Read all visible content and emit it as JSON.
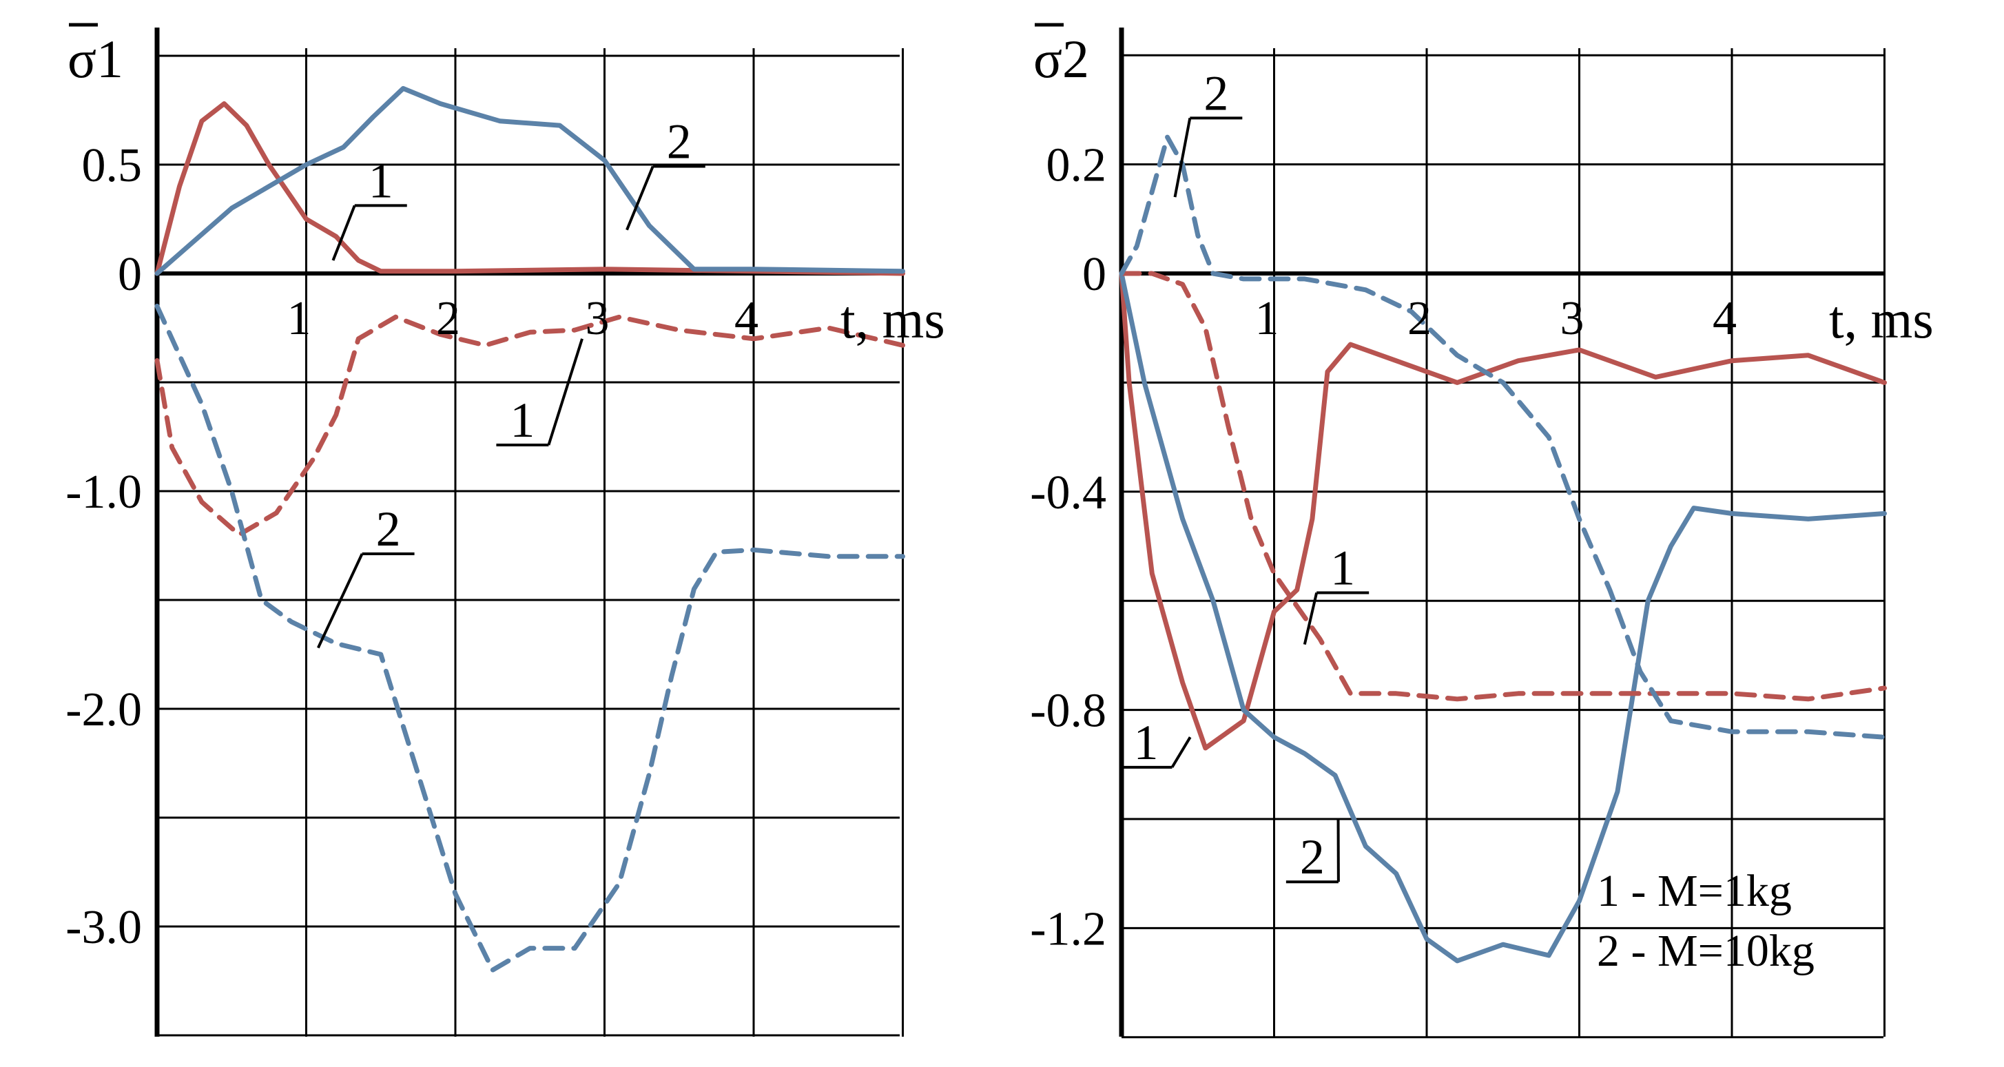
{
  "chart_data": [
    {
      "type": "line",
      "ylabel": "σ1",
      "xlabel": "t, ms",
      "xlim": [
        0,
        5
      ],
      "ylim": [
        -3.5,
        1.0
      ],
      "grid": true,
      "x_ticks": [
        {
          "value": 1,
          "label": "1"
        },
        {
          "value": 2,
          "label": "2"
        },
        {
          "value": 3,
          "label": "3"
        },
        {
          "value": 4,
          "label": "4"
        }
      ],
      "y_ticks": [
        {
          "value": 0.5,
          "label": "0.5"
        },
        {
          "value": 0,
          "label": "0"
        },
        {
          "value": -1.0,
          "label": "-1.0"
        },
        {
          "value": -2.0,
          "label": "-2.0"
        },
        {
          "value": -3.0,
          "label": "-3.0"
        }
      ],
      "y_grid": [
        1.0,
        0.5,
        0,
        -0.5,
        -1.0,
        -1.5,
        -2.0,
        -2.5,
        -3.0,
        -3.5
      ],
      "series": [
        {
          "id": "s1-solid-1",
          "curve": "1",
          "style": "solid",
          "color": "#b85450",
          "x": [
            0,
            0.15,
            0.3,
            0.45,
            0.6,
            0.75,
            0.9,
            1.0,
            1.2,
            1.35,
            1.5,
            2.0,
            3.0,
            4.0,
            5.0
          ],
          "y": [
            0,
            0.4,
            0.7,
            0.78,
            0.68,
            0.5,
            0.35,
            0.25,
            0.17,
            0.06,
            0.01,
            0.01,
            0.02,
            0.01,
            0
          ]
        },
        {
          "id": "s1-solid-2",
          "curve": "2",
          "style": "solid",
          "color": "#5b82a8",
          "x": [
            0,
            0.5,
            1.0,
            1.25,
            1.45,
            1.65,
            1.9,
            2.3,
            2.7,
            3.0,
            3.3,
            3.6,
            4.0,
            5.0
          ],
          "y": [
            0,
            0.3,
            0.5,
            0.58,
            0.72,
            0.85,
            0.78,
            0.7,
            0.68,
            0.52,
            0.22,
            0.02,
            0.02,
            0.01
          ]
        },
        {
          "id": "s1-dash-1",
          "curve": "1",
          "style": "dashed",
          "color": "#b85450",
          "x": [
            0,
            0.1,
            0.3,
            0.55,
            0.8,
            1.05,
            1.2,
            1.35,
            1.6,
            1.9,
            2.2,
            2.5,
            2.8,
            3.1,
            3.5,
            4.0,
            4.5,
            5.0
          ],
          "y": [
            -0.4,
            -0.8,
            -1.05,
            -1.2,
            -1.1,
            -0.85,
            -0.65,
            -0.3,
            -0.2,
            -0.28,
            -0.33,
            -0.27,
            -0.26,
            -0.2,
            -0.26,
            -0.3,
            -0.25,
            -0.33
          ]
        },
        {
          "id": "s1-dash-2",
          "curve": "2",
          "style": "dashed",
          "color": "#5b82a8",
          "x": [
            0,
            0.3,
            0.5,
            0.7,
            0.9,
            1.2,
            1.5,
            1.75,
            2.0,
            2.25,
            2.5,
            2.8,
            3.1,
            3.3,
            3.45,
            3.6,
            3.75,
            4.0,
            4.5,
            5.0
          ],
          "y": [
            -0.15,
            -0.6,
            -1.0,
            -1.5,
            -1.6,
            -1.7,
            -1.75,
            -2.3,
            -2.85,
            -3.2,
            -3.1,
            -3.1,
            -2.8,
            -2.3,
            -1.85,
            -1.45,
            -1.28,
            -1.27,
            -1.3,
            -1.3
          ]
        }
      ],
      "labels": [
        {
          "text": "1",
          "x": 1.5,
          "y": 0.35,
          "lead_to": [
            1.18,
            0.06
          ]
        },
        {
          "text": "2",
          "x": 3.5,
          "y": 0.53,
          "lead_to": [
            3.15,
            0.2
          ]
        },
        {
          "text": "1",
          "x": 2.45,
          "y": -0.75,
          "lead_to": [
            2.85,
            -0.3
          ]
        },
        {
          "text": "2",
          "x": 1.55,
          "y": -1.25,
          "lead_to": [
            1.08,
            -1.72
          ]
        }
      ]
    },
    {
      "type": "line",
      "ylabel": "σ2",
      "xlabel": "t, ms",
      "xlim": [
        0,
        5
      ],
      "ylim": [
        -1.4,
        0.4
      ],
      "grid": true,
      "x_ticks": [
        {
          "value": 1,
          "label": "1"
        },
        {
          "value": 2,
          "label": "2"
        },
        {
          "value": 3,
          "label": "3"
        },
        {
          "value": 4,
          "label": "4"
        }
      ],
      "y_ticks": [
        {
          "value": 0.2,
          "label": "0.2"
        },
        {
          "value": 0,
          "label": "0"
        },
        {
          "value": -0.4,
          "label": "-0.4"
        },
        {
          "value": -0.8,
          "label": "-0.8"
        },
        {
          "value": -1.2,
          "label": "-1.2"
        }
      ],
      "y_grid": [
        0.4,
        0.2,
        0,
        -0.2,
        -0.4,
        -0.6,
        -0.8,
        -1.0,
        -1.2,
        -1.4
      ],
      "series": [
        {
          "id": "s2-solid-1",
          "curve": "1",
          "style": "solid",
          "color": "#b85450",
          "x": [
            0,
            0.05,
            0.2,
            0.4,
            0.55,
            0.8,
            1.0,
            1.15,
            1.25,
            1.35,
            1.5,
            1.8,
            2.2,
            2.6,
            3.0,
            3.5,
            4.0,
            4.5,
            5.0
          ],
          "y": [
            0,
            -0.2,
            -0.55,
            -0.75,
            -0.87,
            -0.82,
            -0.62,
            -0.58,
            -0.45,
            -0.18,
            -0.13,
            -0.16,
            -0.2,
            -0.16,
            -0.14,
            -0.19,
            -0.16,
            -0.15,
            -0.2
          ]
        },
        {
          "id": "s2-solid-2",
          "curve": "2",
          "style": "solid",
          "color": "#5b82a8",
          "x": [
            0,
            0.15,
            0.4,
            0.6,
            0.8,
            1.0,
            1.2,
            1.4,
            1.6,
            1.8,
            2.0,
            2.2,
            2.5,
            2.8,
            3.0,
            3.25,
            3.45,
            3.6,
            3.75,
            4.0,
            4.5,
            5.0
          ],
          "y": [
            0,
            -0.2,
            -0.45,
            -0.6,
            -0.8,
            -0.85,
            -0.88,
            -0.92,
            -1.05,
            -1.1,
            -1.22,
            -1.26,
            -1.23,
            -1.25,
            -1.15,
            -0.95,
            -0.6,
            -0.5,
            -0.43,
            -0.44,
            -0.45,
            -0.44
          ]
        },
        {
          "id": "s2-dash-1",
          "curve": "1",
          "style": "dashed",
          "color": "#b85450",
          "x": [
            0,
            0.2,
            0.4,
            0.55,
            0.7,
            0.85,
            1.0,
            1.2,
            1.3,
            1.5,
            1.8,
            2.2,
            2.6,
            3.0,
            3.5,
            4.0,
            4.5,
            5.0
          ],
          "y": [
            0,
            0.0,
            -0.02,
            -0.1,
            -0.28,
            -0.45,
            -0.55,
            -0.63,
            -0.67,
            -0.77,
            -0.77,
            -0.78,
            -0.77,
            -0.77,
            -0.77,
            -0.77,
            -0.78,
            -0.76
          ]
        },
        {
          "id": "s2-dash-2",
          "curve": "2",
          "style": "dashed",
          "color": "#5b82a8",
          "x": [
            0,
            0.1,
            0.2,
            0.3,
            0.4,
            0.5,
            0.6,
            0.8,
            1.2,
            1.6,
            1.9,
            2.2,
            2.5,
            2.8,
            3.0,
            3.2,
            3.4,
            3.6,
            4.0,
            4.5,
            5.0
          ],
          "y": [
            0,
            0.05,
            0.15,
            0.25,
            0.2,
            0.07,
            0.0,
            -0.01,
            -0.01,
            -0.03,
            -0.07,
            -0.15,
            -0.2,
            -0.3,
            -0.45,
            -0.58,
            -0.73,
            -0.82,
            -0.84,
            -0.84,
            -0.85
          ]
        }
      ],
      "labels": [
        {
          "text": "2",
          "x": 0.62,
          "y": 0.3,
          "lead_to": [
            0.35,
            0.14
          ]
        },
        {
          "text": "1",
          "x": 1.45,
          "y": -0.57,
          "lead_to": [
            1.2,
            -0.68
          ]
        },
        {
          "text": "1",
          "x": 0.16,
          "y": -0.89,
          "lead_to": [
            0.45,
            -0.85
          ]
        },
        {
          "text": "2",
          "x": 1.25,
          "y": -1.1,
          "lead_to": [
            1.42,
            -1.0
          ]
        }
      ],
      "legend": {
        "position": "bottom-right",
        "entries": [
          "1 - M=1kg",
          "2 - M=10kg"
        ]
      }
    }
  ]
}
